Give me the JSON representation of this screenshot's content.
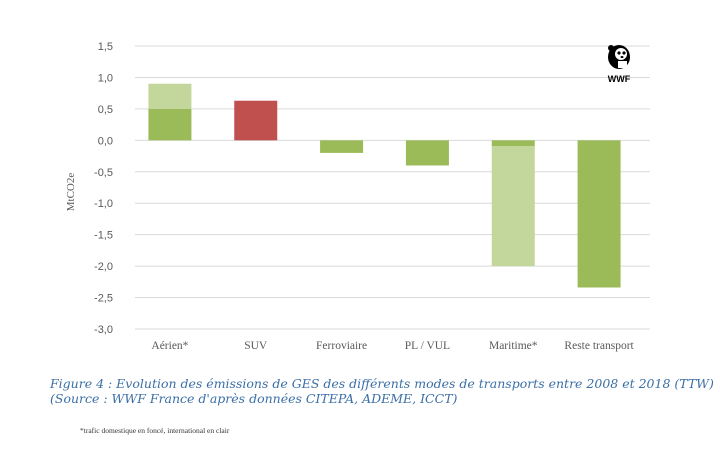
{
  "chart_data": {
    "type": "bar",
    "stacked": true,
    "title": "",
    "xlabel": "",
    "ylabel": "MtCO2e",
    "ylim": [
      -3.0,
      1.5
    ],
    "yticks": [
      1.5,
      1.0,
      0.5,
      0.0,
      -0.5,
      -1.0,
      -1.5,
      -2.0,
      -2.5,
      -3.0
    ],
    "ytick_labels": [
      "1,5",
      "1,0",
      "0,5",
      "0,0",
      "-0,5",
      "-1,0",
      "-1,5",
      "-2,0",
      "-2,5",
      "-3,0"
    ],
    "grid": true,
    "categories": [
      "Aérien*",
      "SUV",
      "Ferroviaire",
      "PL / VUL",
      "Maritime*",
      "Reste transport"
    ],
    "series": [
      {
        "name": "domestique",
        "color": "#9bbb59",
        "values": [
          0.5,
          0,
          -0.2,
          -0.4,
          -0.09,
          -2.34
        ]
      },
      {
        "name": "international",
        "color": "#c3d69b",
        "values": [
          0.4,
          0,
          0,
          0,
          -1.91,
          0
        ]
      },
      {
        "name": "SUV",
        "color": "#c0504d",
        "values": [
          0,
          0.63,
          0,
          0,
          0,
          0
        ]
      }
    ]
  },
  "logo": {
    "text": "WWF"
  },
  "caption": {
    "line1": "Figure 4 : Evolution des émissions de GES des différents modes de transports entre 2008 et 2018 (TTW)",
    "line2": "(Source : WWF France d'après données CITEPA, ADEME, ICCT)"
  },
  "footnote": "*trafic domestique en foncé, international en clair"
}
